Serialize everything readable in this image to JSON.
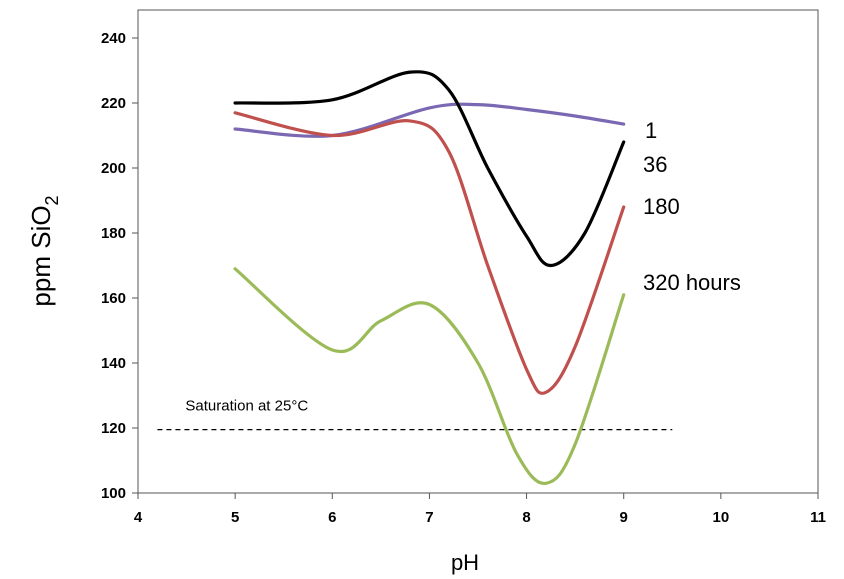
{
  "chart_data": {
    "type": "line",
    "title": "",
    "xlabel": "pH",
    "ylabel": "ppm SiO",
    "ylabel_subscript": "2",
    "xlim": [
      4,
      11
    ],
    "ylim": [
      100,
      245
    ],
    "x_ticks": [
      4,
      5,
      6,
      7,
      8,
      9,
      10,
      11
    ],
    "y_ticks": [
      100,
      120,
      140,
      160,
      180,
      200,
      220,
      240
    ],
    "grid": false,
    "legend": "none",
    "series": [
      {
        "name": "1",
        "color": "#7b68b3",
        "points": [
          [
            5.0,
            212
          ],
          [
            6.0,
            210
          ],
          [
            7.0,
            218.5
          ],
          [
            7.5,
            219.5
          ],
          [
            8.0,
            218
          ],
          [
            8.5,
            216
          ],
          [
            9.0,
            213.5
          ]
        ]
      },
      {
        "name": "36",
        "color": "#000000",
        "points": [
          [
            5.0,
            220
          ],
          [
            6.0,
            221
          ],
          [
            6.8,
            229.5
          ],
          [
            7.2,
            224
          ],
          [
            7.6,
            200
          ],
          [
            8.0,
            179
          ],
          [
            8.25,
            170
          ],
          [
            8.6,
            180
          ],
          [
            9.0,
            208
          ]
        ]
      },
      {
        "name": "180",
        "color": "#c0504d",
        "points": [
          [
            5.0,
            217
          ],
          [
            6.0,
            210
          ],
          [
            6.8,
            214.5
          ],
          [
            7.2,
            205
          ],
          [
            7.6,
            170
          ],
          [
            8.0,
            138
          ],
          [
            8.2,
            131
          ],
          [
            8.5,
            145
          ],
          [
            9.0,
            188
          ]
        ]
      },
      {
        "name": "320 hours",
        "color": "#9bbb59",
        "points": [
          [
            5.0,
            169
          ],
          [
            6.0,
            144
          ],
          [
            6.5,
            153
          ],
          [
            7.0,
            158
          ],
          [
            7.5,
            140
          ],
          [
            7.9,
            112
          ],
          [
            8.2,
            103
          ],
          [
            8.5,
            115
          ],
          [
            9.0,
            161
          ]
        ]
      }
    ],
    "reference_line": {
      "label": "Saturation at 25°C",
      "y": 119.5,
      "x_range": [
        4.2,
        9.5
      ],
      "style": "dashed",
      "color": "#000000"
    }
  }
}
